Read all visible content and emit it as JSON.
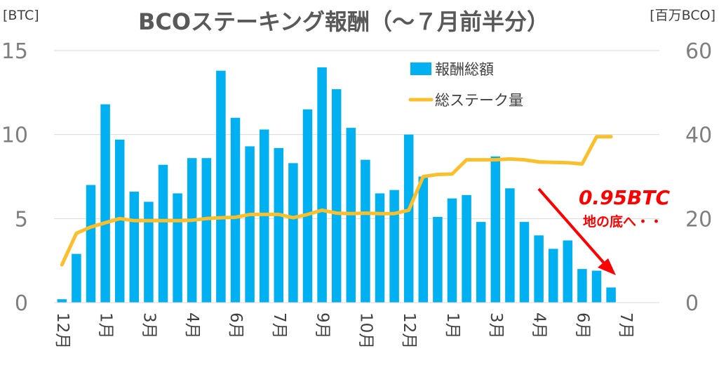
{
  "chart_data": {
    "type": "bar",
    "title": "BCOステーキング報酬（～７月前半分）",
    "y_left_unit": "[BTC]",
    "y_right_unit": "[百万BCO]",
    "ylim_left": [
      0,
      15
    ],
    "ylim_right": [
      0,
      60
    ],
    "yticks_left": [
      "0",
      "5",
      "10",
      "15"
    ],
    "yticks_right": [
      "0",
      "20",
      "40",
      "60"
    ],
    "grid": true,
    "legend_position": "top-center",
    "x_tick_labels": [
      "12月",
      "1月",
      "3月",
      "4月",
      "6月",
      "7月",
      "9月",
      "10月",
      "12月",
      "1月",
      "3月",
      "4月",
      "6月",
      "7月"
    ],
    "series": [
      {
        "name": "報酬総額",
        "type": "bar",
        "axis": "left",
        "color": "#00b0f0",
        "values": [
          0.2,
          2.9,
          7.0,
          11.8,
          9.7,
          6.6,
          6.0,
          8.2,
          6.5,
          8.6,
          8.6,
          13.8,
          11.0,
          9.3,
          10.3,
          9.2,
          8.3,
          11.5,
          14.0,
          12.7,
          10.4,
          8.5,
          6.5,
          6.7,
          10.0,
          7.5,
          5.1,
          6.2,
          6.4,
          4.8,
          8.7,
          6.8,
          4.8,
          4.0,
          3.2,
          3.7,
          2.0,
          1.9,
          0.9
        ]
      },
      {
        "name": "総ステーク量",
        "type": "line",
        "axis": "right",
        "color": "#fbbf2b",
        "values": [
          9.0,
          16.5,
          18.0,
          19.0,
          20.0,
          19.5,
          19.5,
          19.5,
          19.5,
          19.6,
          20.0,
          20.2,
          20.3,
          21.0,
          21.0,
          21.0,
          20.2,
          21.0,
          22.0,
          21.3,
          21.2,
          21.3,
          21.2,
          21.2,
          22.0,
          30.0,
          30.5,
          30.6,
          34.0,
          34.0,
          34.0,
          34.2,
          34.0,
          33.5,
          33.4,
          33.3,
          33.0,
          39.5,
          39.5
        ]
      }
    ],
    "annotations": [
      "0.95BTC",
      "地の底へ・・"
    ]
  }
}
